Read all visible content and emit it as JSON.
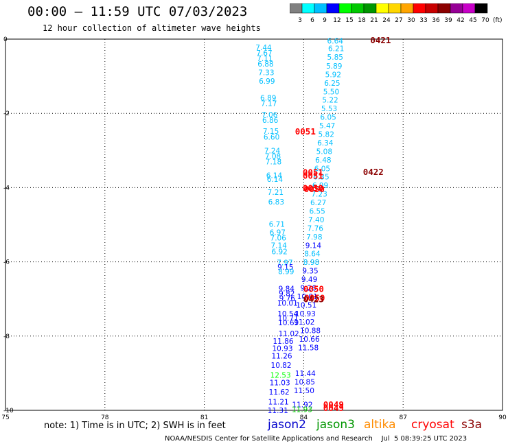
{
  "title": "00:00 – 11:59 UTC 07/03/2023",
  "subtitle": "12 hour collection of altimeter wave heights",
  "colorbar": {
    "labels": [
      "3",
      "6",
      "9",
      "12",
      "15",
      "18",
      "21",
      "24",
      "27",
      "30",
      "33",
      "36",
      "39",
      "42",
      "45",
      "70"
    ],
    "unit": "(ft)",
    "colors": [
      "#808080",
      "#00ffff",
      "#00bfff",
      "#0000ff",
      "#00ff00",
      "#00c800",
      "#009600",
      "#ffff00",
      "#ffd700",
      "#ffa500",
      "#ff0000",
      "#c80000",
      "#8b0000",
      "#960096",
      "#c800c8",
      "#000000"
    ]
  },
  "footnote": "note:  1) Time is in UTC;  2) SWH is in feet",
  "satellites": [
    {
      "name": "jason2",
      "color": "#0000cc"
    },
    {
      "name": "jason3",
      "color": "#009600"
    },
    {
      "name": "altika",
      "color": "#ff8c00"
    },
    {
      "name": "cryosat",
      "color": "#ff0000"
    },
    {
      "name": "s3a",
      "color": "#8b0000"
    }
  ],
  "credit": "NOAA/NESDIS Center for Satellite Applications and Research    Jul  5 08:39:25 UTC 2023",
  "chart_data": {
    "type": "scatter",
    "xlim": [
      75,
      90
    ],
    "ylim": [
      -10,
      0
    ],
    "x_ticks": [
      75,
      78,
      81,
      84,
      87,
      90
    ],
    "y_ticks": [
      0,
      -2,
      -4,
      -6,
      -8,
      -10
    ],
    "grid": true,
    "wave_heights": [
      {
        "x": 84.95,
        "y": -0.05,
        "v": "6.64",
        "c": "#00bfff"
      },
      {
        "x": 84.98,
        "y": -0.25,
        "v": "6.21",
        "c": "#00bfff"
      },
      {
        "x": 84.95,
        "y": -0.48,
        "v": "5.85",
        "c": "#00bfff"
      },
      {
        "x": 84.92,
        "y": -0.72,
        "v": "5.89",
        "c": "#00bfff"
      },
      {
        "x": 84.89,
        "y": -0.95,
        "v": "5.92",
        "c": "#00bfff"
      },
      {
        "x": 84.86,
        "y": -1.18,
        "v": "6.25",
        "c": "#00bfff"
      },
      {
        "x": 84.83,
        "y": -1.41,
        "v": "5.50",
        "c": "#00bfff"
      },
      {
        "x": 84.8,
        "y": -1.64,
        "v": "5.22",
        "c": "#00bfff"
      },
      {
        "x": 84.77,
        "y": -1.87,
        "v": "5.53",
        "c": "#00bfff"
      },
      {
        "x": 84.74,
        "y": -2.1,
        "v": "6.05",
        "c": "#00bfff"
      },
      {
        "x": 84.71,
        "y": -2.33,
        "v": "5.47",
        "c": "#00bfff"
      },
      {
        "x": 84.68,
        "y": -2.56,
        "v": "5.82",
        "c": "#00bfff"
      },
      {
        "x": 84.65,
        "y": -2.79,
        "v": "6.34",
        "c": "#00bfff"
      },
      {
        "x": 84.62,
        "y": -3.02,
        "v": "5.08",
        "c": "#00bfff"
      },
      {
        "x": 84.59,
        "y": -3.25,
        "v": "6.48",
        "c": "#00bfff"
      },
      {
        "x": 84.56,
        "y": -3.48,
        "v": "6.05",
        "c": "#00bfff"
      },
      {
        "x": 84.53,
        "y": -3.71,
        "v": "6.35",
        "c": "#00bfff"
      },
      {
        "x": 84.5,
        "y": -3.94,
        "v": "6.99",
        "c": "#00bfff"
      },
      {
        "x": 84.47,
        "y": -4.17,
        "v": "7.23",
        "c": "#00bfff"
      },
      {
        "x": 84.44,
        "y": -4.4,
        "v": "6.27",
        "c": "#00bfff"
      },
      {
        "x": 84.41,
        "y": -4.63,
        "v": "6.55",
        "c": "#00bfff"
      },
      {
        "x": 84.38,
        "y": -4.86,
        "v": "7.40",
        "c": "#00bfff"
      },
      {
        "x": 84.35,
        "y": -5.09,
        "v": "7.76",
        "c": "#00bfff"
      },
      {
        "x": 84.32,
        "y": -5.32,
        "v": "7.98",
        "c": "#00bfff"
      },
      {
        "x": 84.29,
        "y": -5.55,
        "v": "9.14",
        "c": "#0000ff"
      },
      {
        "x": 84.26,
        "y": -5.78,
        "v": "8.64",
        "c": "#00bfff"
      },
      {
        "x": 84.23,
        "y": -6.01,
        "v": "8.98",
        "c": "#00bfff"
      },
      {
        "x": 84.2,
        "y": -6.24,
        "v": "9.35",
        "c": "#0000ff"
      },
      {
        "x": 84.17,
        "y": -6.47,
        "v": "9.49",
        "c": "#0000ff"
      },
      {
        "x": 84.14,
        "y": -6.7,
        "v": "9.26",
        "c": "#0000ff"
      },
      {
        "x": 84.11,
        "y": -6.93,
        "v": "10.01",
        "c": "#0000ff"
      },
      {
        "x": 84.08,
        "y": -7.16,
        "v": "10.51",
        "c": "#0000ff"
      },
      {
        "x": 84.05,
        "y": -7.39,
        "v": "10.93",
        "c": "#0000ff"
      },
      {
        "x": 84.02,
        "y": -7.62,
        "v": "11.02",
        "c": "#0000ff"
      },
      {
        "x": 84.2,
        "y": -7.85,
        "v": "10.88",
        "c": "#0000ff"
      },
      {
        "x": 84.17,
        "y": -8.08,
        "v": "10.66",
        "c": "#0000ff"
      },
      {
        "x": 84.14,
        "y": -8.31,
        "v": "11.58",
        "c": "#0000ff"
      },
      {
        "x": 84.05,
        "y": -9.0,
        "v": "11.44",
        "c": "#0000ff"
      },
      {
        "x": 84.03,
        "y": -9.23,
        "v": "10.85",
        "c": "#0000ff"
      },
      {
        "x": 84.01,
        "y": -9.46,
        "v": "11.50",
        "c": "#0000ff"
      },
      {
        "x": 83.96,
        "y": -9.84,
        "v": "11.92",
        "c": "#0000ff"
      },
      {
        "x": 83.95,
        "y": -9.97,
        "v": "11.93",
        "c": "#00c800"
      },
      {
        "x": 82.79,
        "y": -0.22,
        "v": "7.44",
        "c": "#00bfff"
      },
      {
        "x": 82.81,
        "y": -0.37,
        "v": "7.67",
        "c": "#00bfff"
      },
      {
        "x": 82.83,
        "y": -0.52,
        "v": "7.11",
        "c": "#00bfff"
      },
      {
        "x": 82.85,
        "y": -0.67,
        "v": "6.88",
        "c": "#00bfff"
      },
      {
        "x": 82.87,
        "y": -0.9,
        "v": "7.33",
        "c": "#00bfff"
      },
      {
        "x": 82.89,
        "y": -1.13,
        "v": "6.99",
        "c": "#00bfff"
      },
      {
        "x": 82.93,
        "y": -1.58,
        "v": "6.89",
        "c": "#00bfff"
      },
      {
        "x": 82.95,
        "y": -1.73,
        "v": "7.17",
        "c": "#00bfff"
      },
      {
        "x": 82.97,
        "y": -2.03,
        "v": "7.06",
        "c": "#00bfff"
      },
      {
        "x": 82.99,
        "y": -2.18,
        "v": "6.86",
        "c": "#00bfff"
      },
      {
        "x": 83.01,
        "y": -2.48,
        "v": "7.15",
        "c": "#00bfff"
      },
      {
        "x": 83.03,
        "y": -2.63,
        "v": "6.60",
        "c": "#00bfff"
      },
      {
        "x": 83.05,
        "y": -3.0,
        "v": "7.24",
        "c": "#00bfff"
      },
      {
        "x": 83.07,
        "y": -3.15,
        "v": "7.08",
        "c": "#00bfff"
      },
      {
        "x": 83.09,
        "y": -3.3,
        "v": "7.18",
        "c": "#00bfff"
      },
      {
        "x": 83.11,
        "y": -3.67,
        "v": "6.14",
        "c": "#00bfff"
      },
      {
        "x": 83.13,
        "y": -3.77,
        "v": "6.14",
        "c": "#00bfff"
      },
      {
        "x": 83.15,
        "y": -4.12,
        "v": "7.21",
        "c": "#00bfff"
      },
      {
        "x": 83.17,
        "y": -4.38,
        "v": "6.83",
        "c": "#00bfff"
      },
      {
        "x": 83.19,
        "y": -4.98,
        "v": "6.71",
        "c": "#00bfff"
      },
      {
        "x": 83.21,
        "y": -5.2,
        "v": "6.97",
        "c": "#00bfff"
      },
      {
        "x": 83.23,
        "y": -5.35,
        "v": "7.06",
        "c": "#00bfff"
      },
      {
        "x": 83.25,
        "y": -5.55,
        "v": "7.14",
        "c": "#00bfff"
      },
      {
        "x": 83.27,
        "y": -5.72,
        "v": "6.92",
        "c": "#00bfff"
      },
      {
        "x": 83.43,
        "y": -6.02,
        "v": "7.97",
        "c": "#00bfff"
      },
      {
        "x": 83.45,
        "y": -6.14,
        "v": "9.15",
        "c": "#0000ff"
      },
      {
        "x": 83.47,
        "y": -6.26,
        "v": "8.99",
        "c": "#00bfff"
      },
      {
        "x": 83.48,
        "y": -6.72,
        "v": "9.84",
        "c": "#0000ff"
      },
      {
        "x": 83.49,
        "y": -6.85,
        "v": "9.82",
        "c": "#0000ff"
      },
      {
        "x": 83.5,
        "y": -6.98,
        "v": "9.76",
        "c": "#0000ff"
      },
      {
        "x": 83.51,
        "y": -7.11,
        "v": "10.01",
        "c": "#0000ff"
      },
      {
        "x": 83.52,
        "y": -7.39,
        "v": "10.54",
        "c": "#0000ff"
      },
      {
        "x": 83.53,
        "y": -7.51,
        "v": "10.71",
        "c": "#0000ff"
      },
      {
        "x": 83.54,
        "y": -7.63,
        "v": "10.69",
        "c": "#0000ff"
      },
      {
        "x": 83.55,
        "y": -7.93,
        "v": "11.02",
        "c": "#0000ff"
      },
      {
        "x": 83.38,
        "y": -8.13,
        "v": "11.86",
        "c": "#0000ff"
      },
      {
        "x": 83.36,
        "y": -8.33,
        "v": "10.93",
        "c": "#0000ff"
      },
      {
        "x": 83.34,
        "y": -8.53,
        "v": "11.26",
        "c": "#0000ff"
      },
      {
        "x": 83.32,
        "y": -8.78,
        "v": "10.82",
        "c": "#0000ff"
      },
      {
        "x": 83.3,
        "y": -9.05,
        "v": "12.53",
        "c": "#00ff00"
      },
      {
        "x": 83.28,
        "y": -9.25,
        "v": "11.03",
        "c": "#0000ff"
      },
      {
        "x": 83.26,
        "y": -9.5,
        "v": "11.62",
        "c": "#0000ff"
      },
      {
        "x": 83.24,
        "y": -9.77,
        "v": "11.21",
        "c": "#0000ff"
      },
      {
        "x": 83.22,
        "y": -10.0,
        "v": "11.31",
        "c": "#0000ff"
      }
    ],
    "time_labels": [
      {
        "x": 86.32,
        "y": -0.02,
        "v": "0421",
        "c": "#8b0000"
      },
      {
        "x": 84.05,
        "y": -2.48,
        "v": "0051",
        "c": "#ff0000"
      },
      {
        "x": 86.1,
        "y": -3.57,
        "v": "0422",
        "c": "#8b0000"
      },
      {
        "x": 84.28,
        "y": -3.58,
        "v": "0051",
        "c": "#ff0000"
      },
      {
        "x": 84.28,
        "y": -3.67,
        "v": "0051",
        "c": "#ff0000"
      },
      {
        "x": 84.28,
        "y": -4.0,
        "v": "0050",
        "c": "#ff0000"
      },
      {
        "x": 84.32,
        "y": -4.03,
        "v": "0050",
        "c": "#ff0000"
      },
      {
        "x": 84.3,
        "y": -6.72,
        "v": "0050",
        "c": "#ff0000"
      },
      {
        "x": 84.33,
        "y": -6.96,
        "v": "0050",
        "c": "#ff0000"
      },
      {
        "x": 84.3,
        "y": -7.0,
        "v": "0423",
        "c": "#8b0000"
      },
      {
        "x": 84.9,
        "y": -9.83,
        "v": "0049",
        "c": "#ff0000"
      },
      {
        "x": 84.9,
        "y": -9.93,
        "v": "0049",
        "c": "#ff0000"
      }
    ]
  }
}
